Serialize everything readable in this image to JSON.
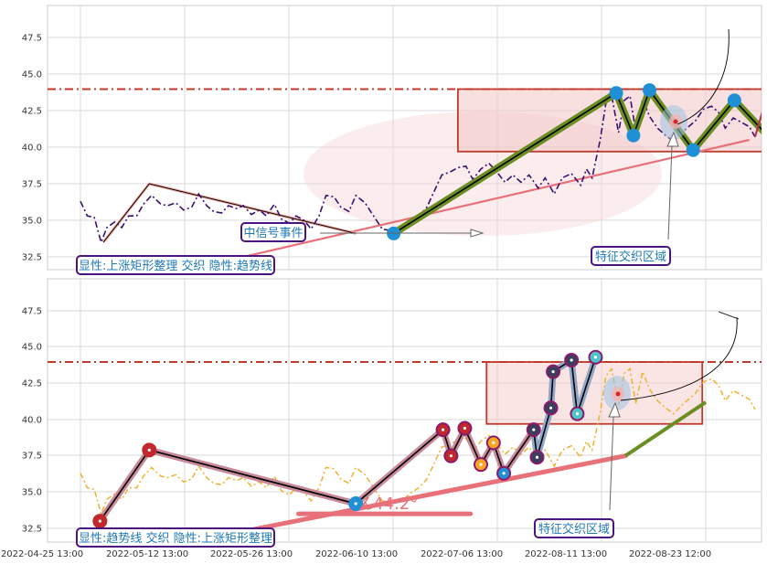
{
  "chart_data": [
    {
      "type": "line",
      "panel": "top",
      "y_ticks": [
        "32.5",
        "35.0",
        "37.5",
        "40.0",
        "42.5",
        "45.0",
        "47.5"
      ],
      "ylim": [
        31.5,
        49.8
      ],
      "resistance_level": 43.97,
      "price": [
        {
          "t": 0,
          "v": 36.3
        },
        {
          "t": 0.6,
          "v": 35.3
        },
        {
          "t": 1.2,
          "v": 35.2
        },
        {
          "t": 1.8,
          "v": 33.5
        },
        {
          "t": 2.3,
          "v": 34.5
        },
        {
          "t": 3.0,
          "v": 34.9
        },
        {
          "t": 3.6,
          "v": 34.5
        },
        {
          "t": 4.2,
          "v": 35.3
        },
        {
          "t": 4.9,
          "v": 35.3
        },
        {
          "t": 5.5,
          "v": 36.1
        },
        {
          "t": 6.2,
          "v": 36.7
        },
        {
          "t": 7.0,
          "v": 36.1
        },
        {
          "t": 7.6,
          "v": 36.0
        },
        {
          "t": 8.3,
          "v": 36.2
        },
        {
          "t": 9.0,
          "v": 35.7
        },
        {
          "t": 9.7,
          "v": 35.9
        },
        {
          "t": 10.3,
          "v": 36.8
        },
        {
          "t": 11.0,
          "v": 36.0
        },
        {
          "t": 11.6,
          "v": 35.6
        },
        {
          "t": 12.3,
          "v": 35.5
        },
        {
          "t": 12.9,
          "v": 36.0
        },
        {
          "t": 13.6,
          "v": 35.8
        },
        {
          "t": 14.2,
          "v": 36.0
        },
        {
          "t": 14.9,
          "v": 35.4
        },
        {
          "t": 15.6,
          "v": 35.7
        },
        {
          "t": 16.2,
          "v": 35.3
        },
        {
          "t": 16.9,
          "v": 36.1
        },
        {
          "t": 17.5,
          "v": 35.1
        },
        {
          "t": 18.2,
          "v": 34.8
        },
        {
          "t": 18.8,
          "v": 35.3
        },
        {
          "t": 19.5,
          "v": 35.0
        },
        {
          "t": 20.1,
          "v": 34.4
        },
        {
          "t": 20.8,
          "v": 35.3
        },
        {
          "t": 21.4,
          "v": 36.7
        },
        {
          "t": 22.1,
          "v": 36.6
        },
        {
          "t": 22.7,
          "v": 35.9
        },
        {
          "t": 23.4,
          "v": 35.6
        },
        {
          "t": 24.0,
          "v": 36.7
        },
        {
          "t": 24.8,
          "v": 36.2
        },
        {
          "t": 25.3,
          "v": 35.6
        },
        {
          "t": 26.3,
          "v": 34.4
        },
        {
          "t": 27.0,
          "v": 34.3
        },
        {
          "t": 27.7,
          "v": 34.3
        },
        {
          "t": 28.3,
          "v": 34.6
        },
        {
          "t": 28.9,
          "v": 35.0
        },
        {
          "t": 29.5,
          "v": 35.3
        },
        {
          "t": 30.2,
          "v": 35.9
        },
        {
          "t": 30.9,
          "v": 37.1
        },
        {
          "t": 31.5,
          "v": 38.1
        },
        {
          "t": 32.2,
          "v": 38.3
        },
        {
          "t": 32.9,
          "v": 38.6
        },
        {
          "t": 33.6,
          "v": 38.7
        },
        {
          "t": 34.2,
          "v": 37.8
        },
        {
          "t": 34.9,
          "v": 38.5
        },
        {
          "t": 35.6,
          "v": 38.9
        },
        {
          "t": 36.2,
          "v": 38.4
        },
        {
          "t": 37.0,
          "v": 37.6
        },
        {
          "t": 37.7,
          "v": 38.1
        },
        {
          "t": 38.4,
          "v": 37.6
        },
        {
          "t": 39.1,
          "v": 38.1
        },
        {
          "t": 39.9,
          "v": 37.2
        },
        {
          "t": 40.5,
          "v": 37.9
        },
        {
          "t": 41.3,
          "v": 36.8
        },
        {
          "t": 42.0,
          "v": 37.9
        },
        {
          "t": 42.8,
          "v": 38.2
        },
        {
          "t": 43.6,
          "v": 37.4
        },
        {
          "t": 44.1,
          "v": 38.5
        },
        {
          "t": 44.6,
          "v": 37.9
        },
        {
          "t": 45.3,
          "v": 40.5
        },
        {
          "t": 45.8,
          "v": 43.0
        },
        {
          "t": 46.3,
          "v": 43.5
        },
        {
          "t": 46.9,
          "v": 41.0
        },
        {
          "t": 47.4,
          "v": 43.2
        },
        {
          "t": 47.9,
          "v": 43.5
        },
        {
          "t": 48.4,
          "v": 41.1
        },
        {
          "t": 49.0,
          "v": 43.3
        },
        {
          "t": 49.6,
          "v": 42.1
        },
        {
          "t": 50.3,
          "v": 41.3
        },
        {
          "t": 51.0,
          "v": 40.8
        },
        {
          "t": 51.7,
          "v": 40.4
        },
        {
          "t": 52.3,
          "v": 40.9
        },
        {
          "t": 53.0,
          "v": 41.4
        },
        {
          "t": 53.6,
          "v": 41.8
        },
        {
          "t": 54.3,
          "v": 42.6
        },
        {
          "t": 55.0,
          "v": 42.8
        },
        {
          "t": 55.6,
          "v": 42.4
        },
        {
          "t": 56.2,
          "v": 41.3
        },
        {
          "t": 56.9,
          "v": 42.0
        },
        {
          "t": 57.6,
          "v": 41.7
        },
        {
          "t": 58.3,
          "v": 41.4
        },
        {
          "t": 58.8,
          "v": 40.7
        }
      ],
      "forecast": [
        {
          "t": 58.8,
          "v": 40.7
        },
        {
          "t": 60.0,
          "v": 43.9
        },
        {
          "t": 61.0,
          "v": 45.3
        },
        {
          "t": 62.0,
          "v": 44.0
        }
      ],
      "forecast_projection": [
        {
          "t": 62.0,
          "v": 44.0
        },
        {
          "t": 65.0,
          "v": 48.2
        }
      ],
      "trend_line": [
        {
          "t": 12.0,
          "v": 32.1
        },
        {
          "t": 58.3,
          "v": 40.5
        }
      ],
      "rectangle": {
        "t0": 32.9,
        "t1": 60.2,
        "v0": 39.7,
        "v1": 43.97
      },
      "pivots": [
        {
          "t": 27.3,
          "v": 34.1
        },
        {
          "t": 46.7,
          "v": 43.7
        },
        {
          "t": 48.2,
          "v": 40.8
        },
        {
          "t": 49.6,
          "v": 43.9
        },
        {
          "t": 53.4,
          "v": 39.8
        },
        {
          "t": 57.0,
          "v": 43.2
        },
        {
          "t": 60.0,
          "v": 40.7
        }
      ],
      "early_path": [
        {
          "t": 2.0,
          "v": 33.5
        },
        {
          "t": 6.0,
          "v": 37.5
        },
        {
          "t": 24.0,
          "v": 34.1
        }
      ],
      "labels": {
        "event": "中信号事件",
        "pattern": "显性:上涨矩形整理 交织 隐性:趋势线",
        "zone": "特征交织区域"
      }
    },
    {
      "type": "line",
      "panel": "bottom",
      "x_ticks": [
        "2022-04-25 13:00",
        "2022-05-12 13:00",
        "2022-05-26 13:00",
        "2022-06-10 13:00",
        "2022-07-06 13:00",
        "2022-08-11 13:00",
        "2022-08-23 12:00"
      ],
      "y_ticks": [
        "32.5",
        "35.0",
        "37.5",
        "40.0",
        "42.5",
        "45.0",
        "47.5"
      ],
      "ylim": [
        31.5,
        49.8
      ],
      "resistance_level": 43.97,
      "trend_line": [
        {
          "t": 13.0,
          "v": 32.1
        },
        {
          "t": 47.5,
          "v": 37.5
        }
      ],
      "trend_extension": [
        {
          "t": 47.5,
          "v": 37.5
        },
        {
          "t": 54.5,
          "v": 41.2
        }
      ],
      "flat_line": [
        {
          "t": 19.0,
          "v": 33.5
        },
        {
          "t": 34.0,
          "v": 33.5
        }
      ],
      "angle": "∡44.2°",
      "rectangle": {
        "t0": 35.4,
        "t1": 54.2,
        "v0": 39.7,
        "v1": 43.97
      },
      "path": [
        {
          "t": 1.7,
          "v": 33.0
        },
        {
          "t": 6.0,
          "v": 37.9
        },
        {
          "t": 24.0,
          "v": 34.2
        },
        {
          "t": 31.6,
          "v": 39.3
        },
        {
          "t": 32.3,
          "v": 37.5
        },
        {
          "t": 33.5,
          "v": 39.4
        },
        {
          "t": 34.9,
          "v": 36.9
        },
        {
          "t": 36.0,
          "v": 38.4
        },
        {
          "t": 36.9,
          "v": 36.3
        },
        {
          "t": 39.5,
          "v": 39.3
        },
        {
          "t": 39.8,
          "v": 37.4
        },
        {
          "t": 41.0,
          "v": 40.8
        },
        {
          "t": 41.2,
          "v": 43.3
        },
        {
          "t": 42.8,
          "v": 44.1
        },
        {
          "t": 43.3,
          "v": 40.4
        },
        {
          "t": 44.9,
          "v": 44.3
        }
      ],
      "labels": {
        "pattern": "显性:趋势线 交织 隐性:上涨矩形整理",
        "zone": "特征交织区域"
      }
    }
  ],
  "colors": {
    "price": "#3b0f70",
    "price_bottom": "#f0b030",
    "resistance": "#c0392b",
    "trend": "#e87179",
    "green_path": "#6b8e23",
    "pivot": "#1f8fd6",
    "label_border": "#4b1480",
    "label_text": "#1f78b4"
  }
}
